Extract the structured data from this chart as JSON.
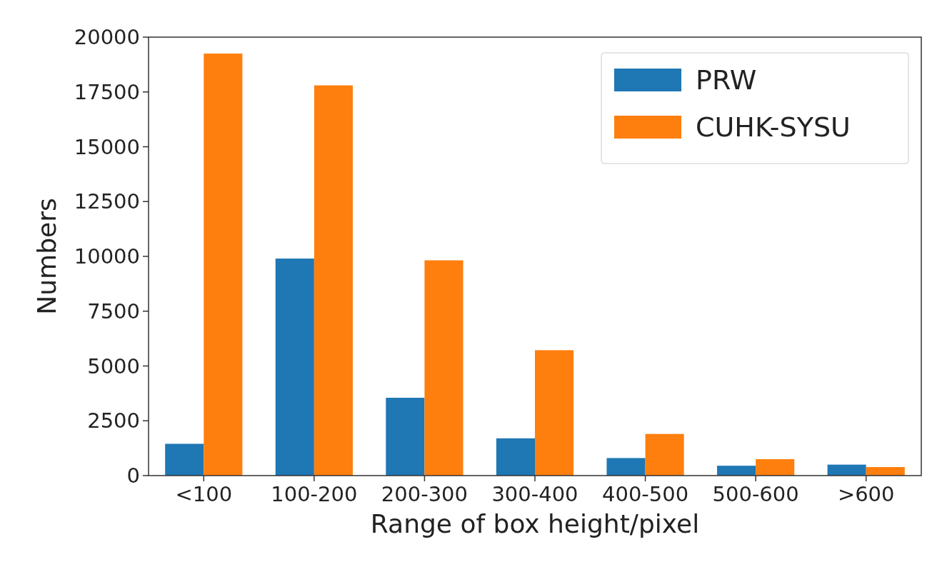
{
  "chart_data": {
    "type": "bar",
    "xlabel": "Range of box height/pixel",
    "ylabel": "Numbers",
    "categories": [
      "<100",
      "100-200",
      "200-300",
      "300-400",
      "400-500",
      "500-600",
      ">600"
    ],
    "series": [
      {
        "name": "PRW",
        "color": "#1f77b4",
        "values": [
          1450,
          9900,
          3550,
          1700,
          800,
          450,
          500
        ]
      },
      {
        "name": "CUHK-SYSU",
        "color": "#ff7f0e",
        "values": [
          19250,
          17800,
          9820,
          5720,
          1900,
          750,
          390
        ]
      }
    ],
    "ylim": [
      0,
      20000
    ],
    "yticks": [
      0,
      2500,
      5000,
      7500,
      10000,
      12500,
      15000,
      17500,
      20000
    ],
    "grid": false,
    "legend": "top right"
  }
}
